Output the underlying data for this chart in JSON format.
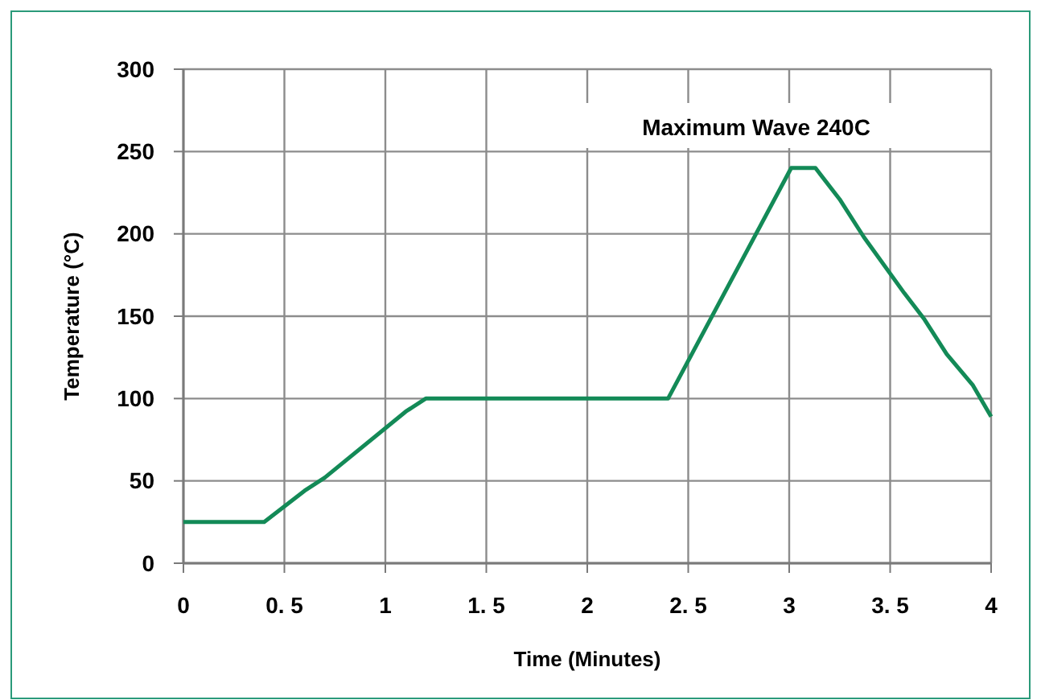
{
  "chart_data": {
    "type": "line",
    "xlabel": "Time (Minutes)",
    "ylabel": "Temperature (°C)",
    "annotations": [
      "Maximum Wave 240C"
    ],
    "series": [
      {
        "color": "#138a57",
        "x": [
          0,
          0.4,
          0.6,
          0.7,
          1.1,
          1.2,
          2.4,
          3.01,
          3.13,
          3.25,
          3.37,
          3.57,
          3.67,
          3.78,
          3.91,
          4
        ],
        "values": [
          25,
          25,
          44,
          52,
          92,
          100,
          100,
          240,
          240,
          221,
          198,
          164,
          148,
          127,
          108,
          89
        ]
      }
    ],
    "xlim": [
      0,
      4
    ],
    "xticks": [
      0,
      {
        "value": 0.5,
        "label": "0. 5"
      },
      1,
      {
        "value": 1.5,
        "label": "1. 5"
      },
      2,
      {
        "value": 2.5,
        "label": "2. 5"
      },
      3,
      {
        "value": 3.5,
        "label": "3. 5"
      },
      4
    ],
    "ylim": [
      0,
      300
    ],
    "yticks": [
      0,
      50,
      100,
      150,
      200,
      250,
      300
    ],
    "grid": true,
    "marker": "none",
    "line_style": "solid"
  }
}
